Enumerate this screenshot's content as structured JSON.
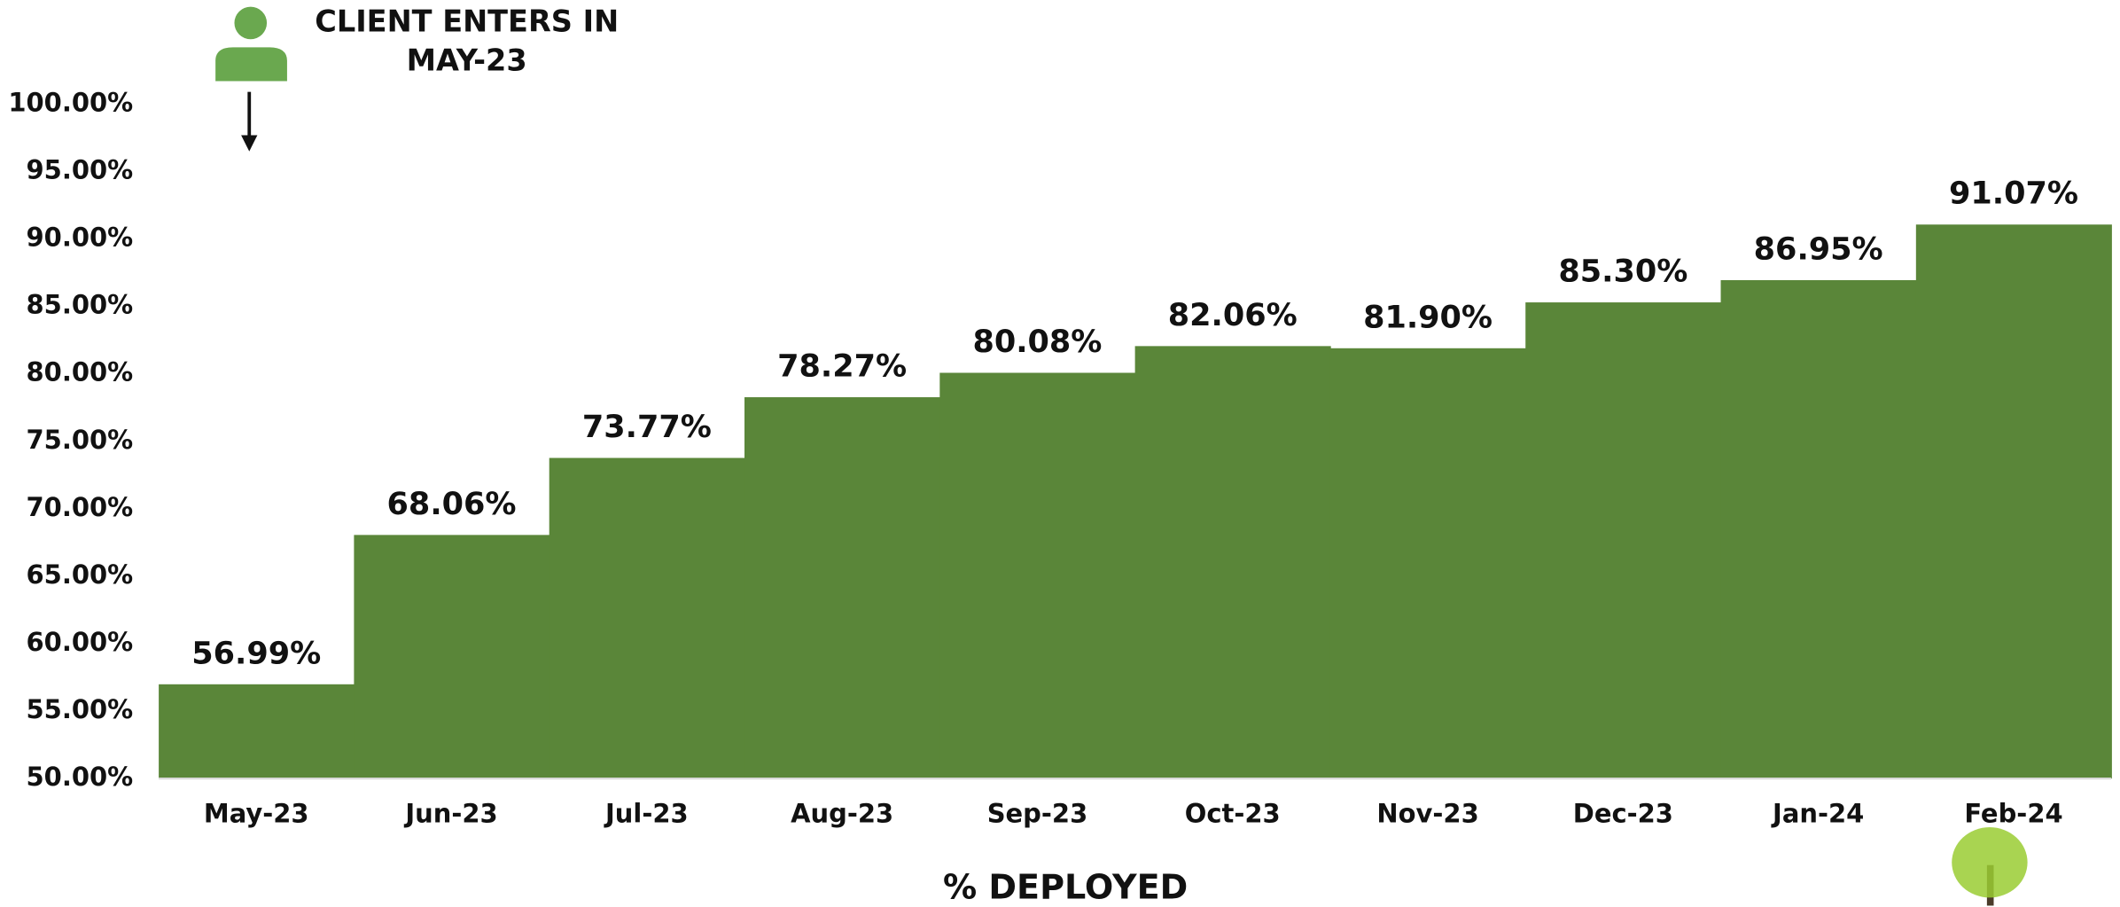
{
  "chart_data": {
    "type": "bar",
    "annotation": [
      "CLIENT ENTERS IN",
      "MAY-23"
    ],
    "x_label": "% DEPLOYED",
    "categories": [
      "May-23",
      "Jun-23",
      "Jul-23",
      "Aug-23",
      "Sep-23",
      "Oct-23",
      "Nov-23",
      "Dec-23",
      "Jan-24",
      "Feb-24"
    ],
    "values": [
      56.99,
      68.06,
      73.77,
      78.27,
      80.08,
      82.06,
      81.9,
      85.3,
      86.95,
      91.07
    ],
    "value_labels": [
      "56.99%",
      "68.06%",
      "73.77%",
      "78.27%",
      "80.08%",
      "82.06%",
      "81.90%",
      "85.30%",
      "86.95%",
      "91.07%"
    ],
    "color": "#5a8639",
    "ylim": [
      50,
      100
    ],
    "yticks": [
      {
        "value": 50,
        "label": "50.00%"
      },
      {
        "value": 55,
        "label": "55.00%"
      },
      {
        "value": 60,
        "label": "60.00%"
      },
      {
        "value": 65,
        "label": "65.00%"
      },
      {
        "value": 70,
        "label": "70.00%"
      },
      {
        "value": 75,
        "label": "75.00%"
      },
      {
        "value": 80,
        "label": "80.00%"
      },
      {
        "value": 85,
        "label": "85.00%"
      },
      {
        "value": 90,
        "label": "90.00%"
      },
      {
        "value": 95,
        "label": "95.00%"
      },
      {
        "value": 100,
        "label": "100.00%"
      }
    ],
    "grid": false
  }
}
